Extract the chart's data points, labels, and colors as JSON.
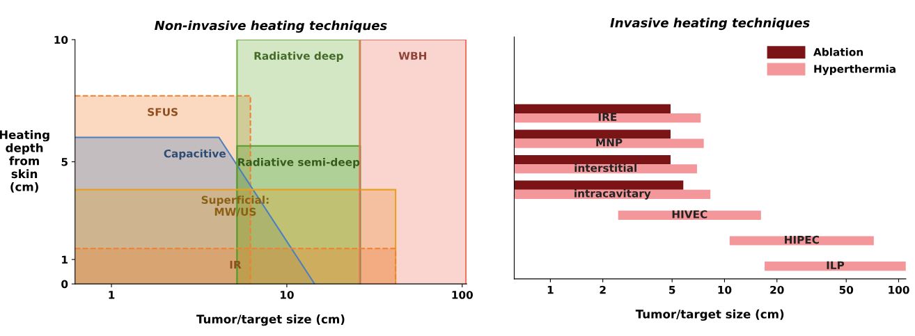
{
  "chart_data": [
    {
      "type": "area",
      "title": "Non-invasive heating techniques",
      "xlabel": "Tumor/target size (cm)",
      "ylabel": "Heating\ndepth\nfrom\nskin\n(cm)",
      "log": "x",
      "xlim": [
        0.62,
        106
      ],
      "xticks": [
        1,
        10,
        100
      ],
      "ylim": [
        0,
        10
      ],
      "yticks": [
        0,
        1,
        5,
        10
      ],
      "grid": false,
      "series": [
        {
          "name": "SFUS",
          "color": "#f08030",
          "line_style": "dashed",
          "x": [
            0.62,
            6.2,
            6.2
          ],
          "values": [
            7.7,
            7.7,
            0
          ]
        },
        {
          "name": "Capacitive",
          "color": "#4a7fc0",
          "line_style": "solid",
          "x": [
            0.62,
            4.1,
            14.4
          ],
          "values": [
            6.0,
            6.0,
            0
          ]
        },
        {
          "name": "Radiative deep",
          "color": "#70b040",
          "line_style": "solid",
          "x": [
            5.2,
            5.2,
            26.2,
            26.2
          ],
          "values": [
            0,
            10,
            10,
            0
          ]
        },
        {
          "name": "Radiative semi-deep",
          "color": "#5a9a30",
          "line_style": "solid",
          "x": [
            5.2,
            5.2,
            26.2,
            26.2
          ],
          "values": [
            0,
            5.65,
            5.65,
            0
          ]
        },
        {
          "name": "Superficial:\nMW/US",
          "color": "#e8a020",
          "line_style": "solid",
          "x": [
            0.62,
            41.7,
            41.7
          ],
          "values": [
            3.86,
            3.86,
            0
          ]
        },
        {
          "name": "IR",
          "color": "#f08030",
          "line_style": "dashed",
          "x": [
            0.62,
            41.7,
            41.7
          ],
          "values": [
            1.45,
            1.45,
            0
          ]
        },
        {
          "name": "WBH",
          "color": "#f07060",
          "line_style": "solid",
          "x": [
            26,
            26,
            105,
            105
          ],
          "values": [
            0,
            10,
            10,
            0
          ]
        }
      ]
    },
    {
      "type": "bar",
      "orientation": "horizontal",
      "title": "Invasive heating techniques",
      "xlabel": "Tumor/target size (cm)",
      "log": "x",
      "xlim": [
        0.62,
        110
      ],
      "xticks": [
        1,
        2,
        5,
        10,
        20,
        50,
        100
      ],
      "tick_labels": "x",
      "grid": false,
      "legend": "top right",
      "categories": [
        "IRE",
        "MNP",
        "interstitial",
        "intracavitary",
        "HIVEC",
        "HIPEC",
        "ILP"
      ],
      "series": [
        {
          "name": "Ablation",
          "color": "#7b1416",
          "base": [
            0.62,
            0.62,
            0.62,
            0.62,
            null,
            null,
            null
          ],
          "values": [
            4.28,
            4.28,
            4.28,
            5.18,
            null,
            null,
            null
          ]
        },
        {
          "name": "Hyperthermia",
          "color": "#f4979a",
          "base": [
            0.62,
            0.62,
            0.62,
            0.62,
            2.45,
            10.7,
            17.0
          ],
          "values": [
            6.68,
            6.98,
            6.33,
            7.68,
            13.75,
            61.3,
            93.0
          ]
        }
      ]
    }
  ]
}
